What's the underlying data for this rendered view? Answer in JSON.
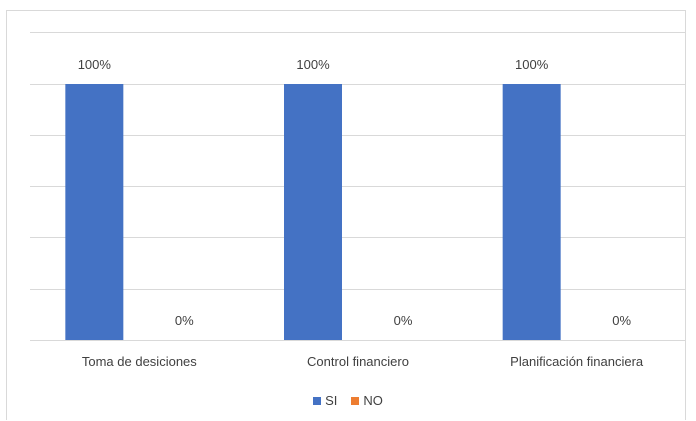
{
  "chart_data": {
    "type": "bar",
    "categories": [
      "Toma de desiciones",
      "Control financiero",
      "Planificación financiera"
    ],
    "series": [
      {
        "name": "SI",
        "values": [
          100,
          100,
          100
        ],
        "labels": [
          "100%",
          "100%",
          "100%"
        ],
        "color": "#4472C4"
      },
      {
        "name": "NO",
        "values": [
          0,
          0,
          0
        ],
        "labels": [
          "0%",
          "0%",
          "0%"
        ],
        "color": "#ED7D31"
      }
    ],
    "ylim": [
      0,
      100
    ],
    "grid": true,
    "legend_position": "bottom"
  }
}
